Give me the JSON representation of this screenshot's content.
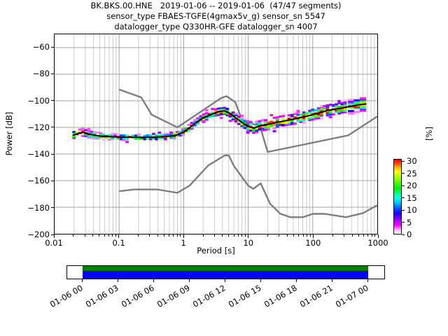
{
  "title_lines": [
    "BK.BKS.00.HNE   2019-01-06 -- 2019-01-06  (47/47 segments)",
    "sensor_type FBAES-TGFE(4gmax5v_g) sensor_sn 5547",
    "datalogger_type Q330HR-GFE datalogger_sn 4007"
  ],
  "axes": {
    "xlabel": "Period [s]",
    "ylabel": "Power [dB]",
    "x_tick_values": [
      0.01,
      0.1,
      1,
      10,
      100,
      1000
    ],
    "x_tick_labels": [
      "0.01",
      "0.1",
      "1",
      "10",
      "100",
      "1000"
    ],
    "y_tick_values": [
      -60,
      -80,
      -100,
      -120,
      -140,
      -160,
      -180,
      -200
    ],
    "y_tick_labels": [
      "−60",
      "−80",
      "−100",
      "−120",
      "−140",
      "−160",
      "−180",
      "−200"
    ]
  },
  "colorbar": {
    "label": "[%]",
    "tick_values": [
      0,
      5,
      10,
      15,
      20,
      25,
      30
    ],
    "tick_labels": [
      "0",
      "5",
      "10",
      "15",
      "20",
      "25",
      "30"
    ],
    "max_pct": 31,
    "gradient": [
      [
        0,
        "#ffffff"
      ],
      [
        1.5,
        "#ffc2ff"
      ],
      [
        3.5,
        "#ff00ff"
      ],
      [
        6,
        "#9400ff"
      ],
      [
        8.5,
        "#1c00ff"
      ],
      [
        11,
        "#0062ff"
      ],
      [
        13,
        "#00c4ff"
      ],
      [
        15,
        "#00ffe1"
      ],
      [
        17,
        "#00ff87"
      ],
      [
        19,
        "#00f000"
      ],
      [
        21.5,
        "#4dff00"
      ],
      [
        24,
        "#b8ff00"
      ],
      [
        26,
        "#ffff00"
      ],
      [
        28,
        "#ffa000"
      ],
      [
        29.5,
        "#ff4400"
      ],
      [
        31,
        "#e60000"
      ]
    ]
  },
  "chart_data": {
    "type": "heatmap",
    "title": "BK.BKS.00.HNE   2019-01-06 -- 2019-01-06  (47/47 segments)",
    "xlabel": "Period [s]",
    "ylabel": "Power [dB]",
    "xscale": "log",
    "xlim": [
      0.01,
      1000
    ],
    "ylim": [
      -200,
      -50
    ],
    "grid": true,
    "legend_position": "none",
    "series": [
      {
        "name": "ppsd_mode_curve",
        "color": "#000000",
        "points": [
          [
            0.019,
            -126.0
          ],
          [
            0.022,
            -125.0
          ],
          [
            0.028,
            -123.6
          ],
          [
            0.035,
            -125.2
          ],
          [
            0.05,
            -126.5
          ],
          [
            0.08,
            -127.1
          ],
          [
            0.13,
            -127.4
          ],
          [
            0.22,
            -127.5
          ],
          [
            0.35,
            -127.3
          ],
          [
            0.55,
            -126.9
          ],
          [
            0.75,
            -126.0
          ],
          [
            1.0,
            -123.5
          ],
          [
            1.2,
            -120.7
          ],
          [
            1.45,
            -117.4
          ],
          [
            1.75,
            -114.8
          ],
          [
            2.0,
            -112.8
          ],
          [
            2.8,
            -109.9
          ],
          [
            3.5,
            -108.0
          ],
          [
            4.3,
            -107.5
          ],
          [
            5.2,
            -109.4
          ],
          [
            6.5,
            -113.0
          ],
          [
            8.0,
            -116.3
          ],
          [
            10.0,
            -119.2
          ],
          [
            12.3,
            -120.6
          ],
          [
            14.6,
            -119.0
          ],
          [
            20,
            -117.7
          ],
          [
            30,
            -116.0
          ],
          [
            50,
            -113.8
          ],
          [
            80,
            -111.6
          ],
          [
            120,
            -109.4
          ],
          [
            168,
            -107.3
          ],
          [
            250,
            -105.8
          ],
          [
            350,
            -104.5
          ],
          [
            480,
            -103.3
          ],
          [
            600,
            -102.6
          ],
          [
            680,
            -102.3
          ]
        ]
      },
      {
        "name": "noise_model_NHNM",
        "color": "#7d7d7d",
        "points": [
          [
            0.1,
            -91.5
          ],
          [
            0.22,
            -97.4
          ],
          [
            0.32,
            -110.5
          ],
          [
            0.8,
            -120.0
          ],
          [
            3.8,
            -98.0
          ],
          [
            4.6,
            -96.5
          ],
          [
            6.3,
            -101.0
          ],
          [
            7.9,
            -113.5
          ],
          [
            15.4,
            -120.0
          ],
          [
            20.0,
            -138.5
          ],
          [
            354.8,
            -126.0
          ],
          [
            1000,
            -111.8
          ]
        ]
      },
      {
        "name": "noise_model_NLNM",
        "color": "#7d7d7d",
        "points": [
          [
            0.1,
            -168.0
          ],
          [
            0.17,
            -166.7
          ],
          [
            0.4,
            -166.7
          ],
          [
            0.8,
            -169.2
          ],
          [
            1.24,
            -163.7
          ],
          [
            2.4,
            -148.6
          ],
          [
            4.3,
            -141.1
          ],
          [
            5.0,
            -141.1
          ],
          [
            6.0,
            -149.0
          ],
          [
            10.0,
            -163.8
          ],
          [
            12.0,
            -166.2
          ],
          [
            15.6,
            -162.1
          ],
          [
            21.9,
            -177.5
          ],
          [
            31.6,
            -185.0
          ],
          [
            45.0,
            -187.5
          ],
          [
            70.0,
            -187.5
          ],
          [
            101.0,
            -185.0
          ],
          [
            154.0,
            -185.0
          ],
          [
            328.0,
            -187.5
          ],
          [
            600.0,
            -184.4
          ],
          [
            1000,
            -178.5
          ]
        ]
      }
    ],
    "histogram": {
      "period_range": [
        0.019,
        700
      ],
      "db_bin_height": 1.2,
      "max_percentage": 31,
      "spread_db": [
        [
          0.019,
          1.3
        ],
        [
          0.03,
          1.2
        ],
        [
          0.06,
          0.95
        ],
        [
          0.3,
          0.9
        ],
        [
          1,
          1.0
        ],
        [
          3,
          1.3
        ],
        [
          7,
          1.5
        ],
        [
          12,
          1.8
        ],
        [
          30,
          1.8
        ],
        [
          100,
          1.9
        ],
        [
          400,
          2.1
        ],
        [
          700,
          2.3
        ]
      ]
    }
  },
  "coverage_bar": {
    "data_color": "#008000",
    "segment_color": "#0000ff",
    "tick_labels": [
      "01-06 00",
      "01-06 03",
      "01-06 06",
      "01-06 09",
      "01-06 12",
      "01-06 15",
      "01-06 18",
      "01-06 21",
      "01-07 00"
    ]
  }
}
